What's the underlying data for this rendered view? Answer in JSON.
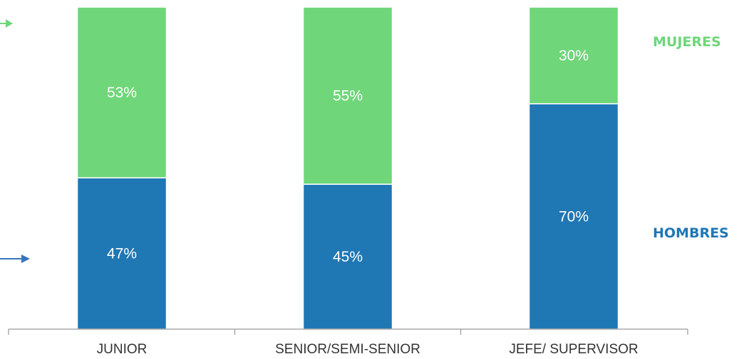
{
  "chart_data": {
    "type": "bar",
    "stacked": true,
    "percent_stacked": true,
    "categories": [
      "JUNIOR",
      "SENIOR/SEMI-SENIOR",
      "JEFE/ SUPERVISOR"
    ],
    "series": [
      {
        "name": "HOMBRES",
        "values": [
          47,
          45,
          70
        ],
        "labels": [
          "47%",
          "45%",
          "70%"
        ],
        "color": "#1f77b4"
      },
      {
        "name": "MUJERES",
        "values": [
          53,
          55,
          30
        ],
        "labels": [
          "53%",
          "55%",
          "30%"
        ],
        "color": "#6fd67a"
      }
    ],
    "ylim": [
      0,
      100
    ],
    "grid": false,
    "legend_position": "right",
    "axis_color": "#999999",
    "arrow_colors": {
      "hombres": "#3a74b8",
      "mujeres": "#6fd67a"
    }
  }
}
